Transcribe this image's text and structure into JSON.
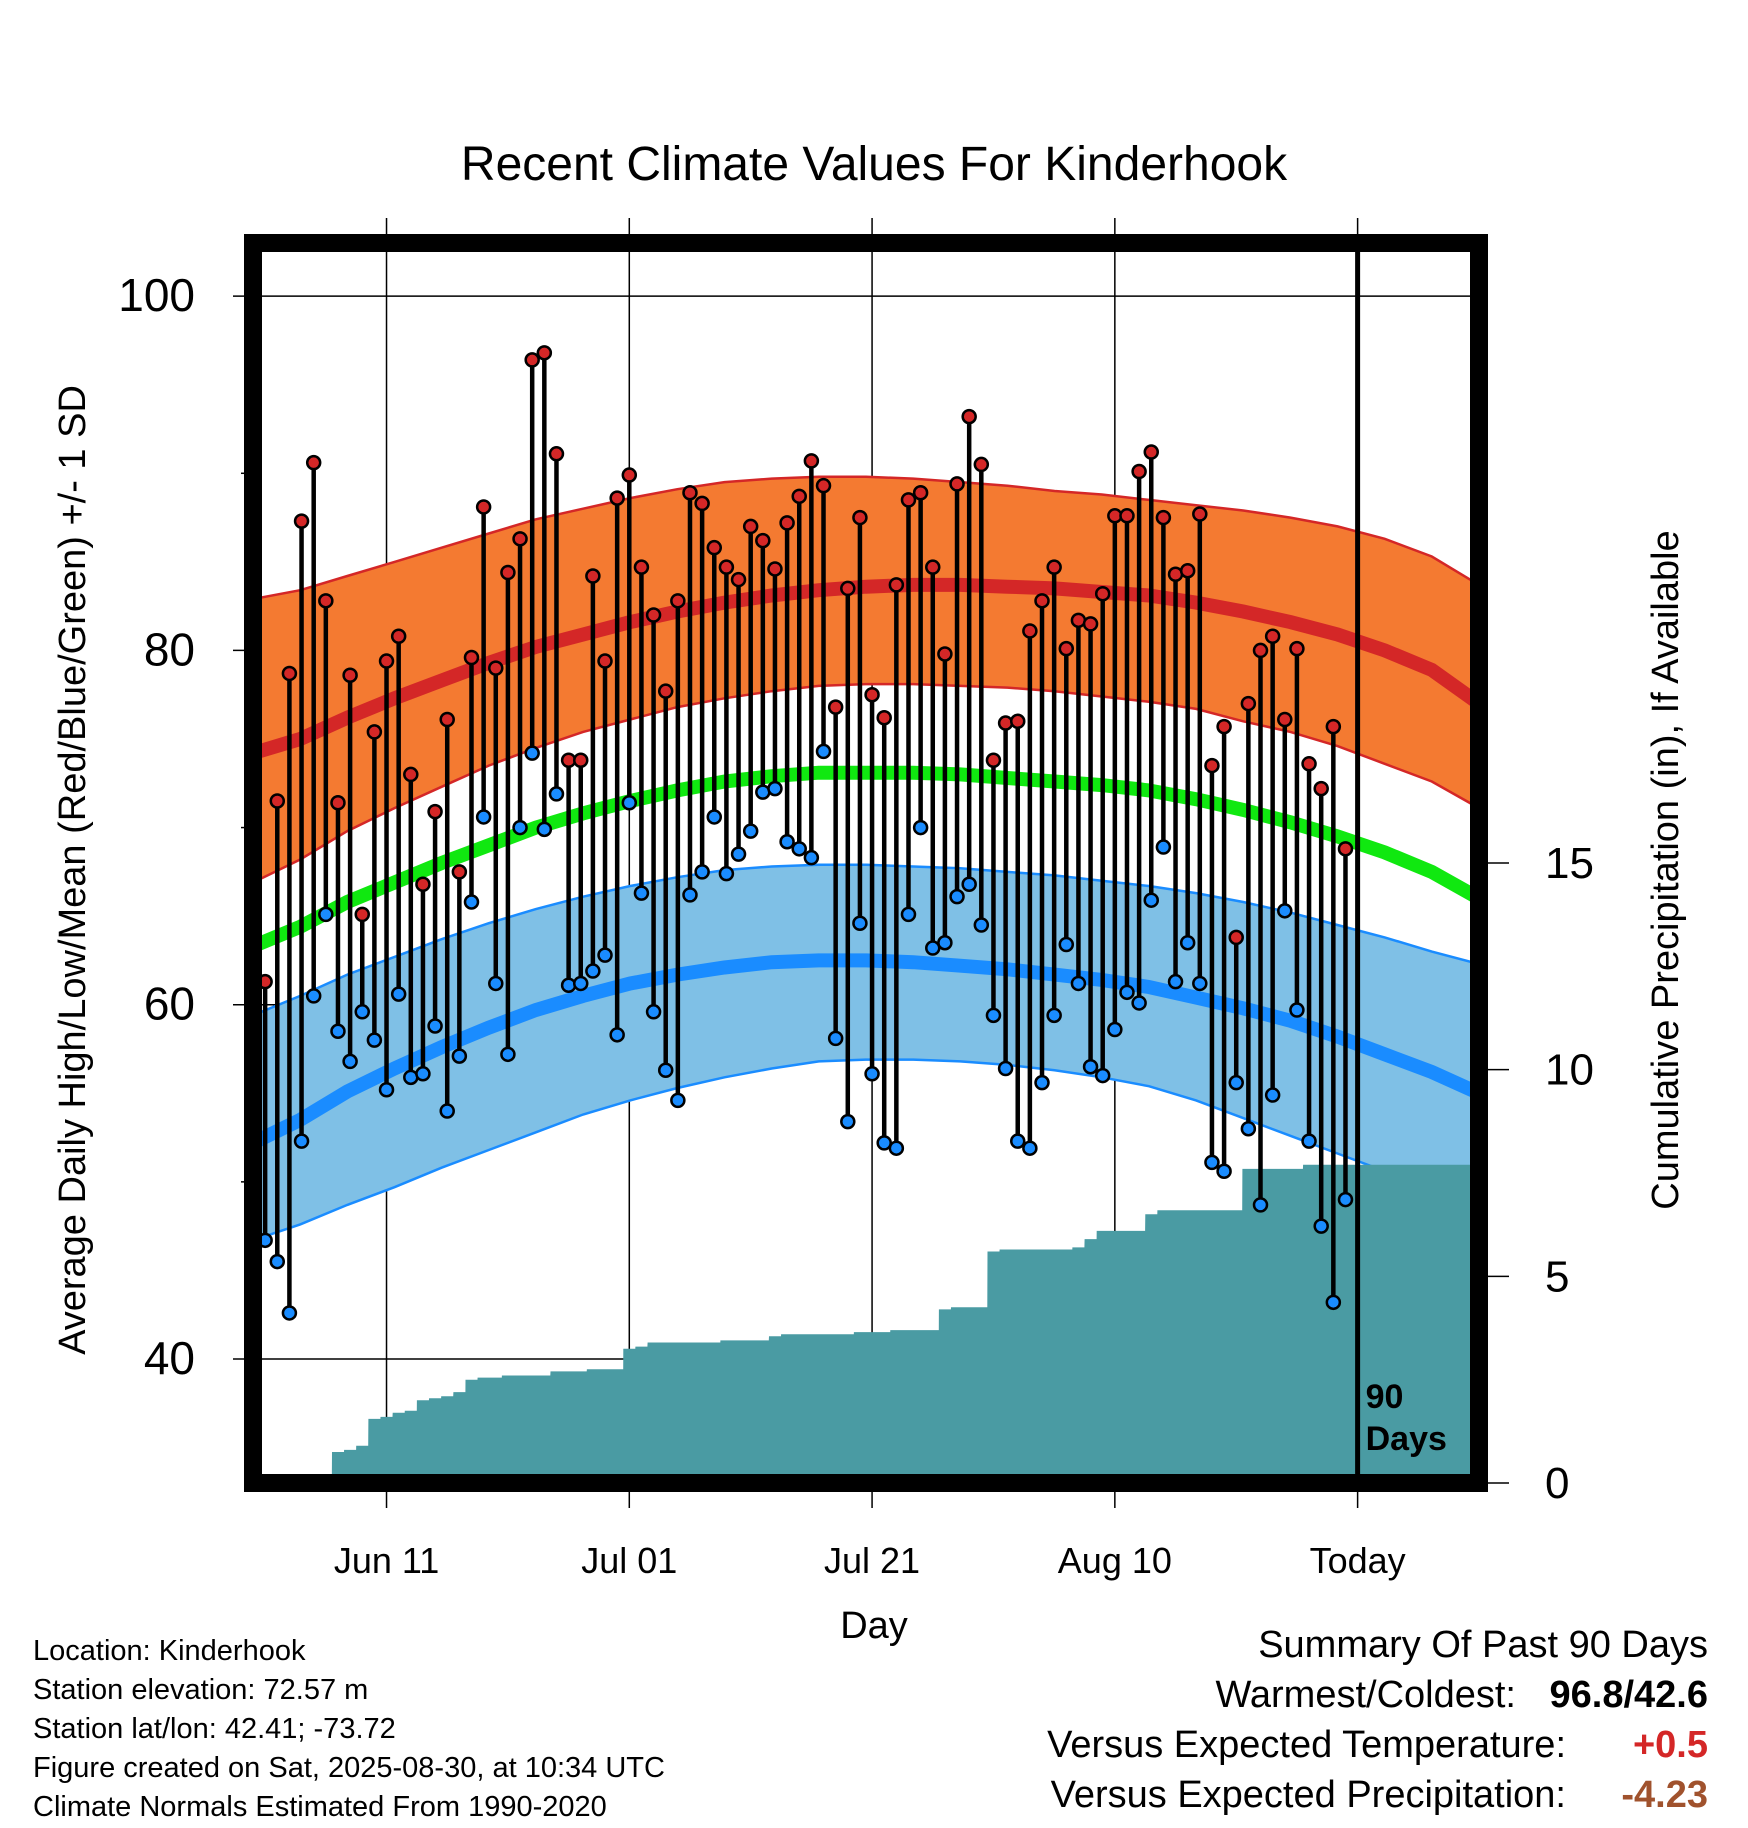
{
  "chart_data": {
    "type": "line",
    "title": "Recent Climate Values For Kinderhook",
    "xlabel": "Day",
    "ylabel": "Average Daily High/Low/Mean (Red/Blue/Green) +/- 1 SD",
    "y2label": "Cumulative Precipitation (in), If Available",
    "ylim": [
      33,
      103
    ],
    "y2lim": [
      0,
      30
    ],
    "yticks": [
      40,
      60,
      80,
      100
    ],
    "y2ticks": [
      0,
      5,
      10,
      15
    ],
    "x_range_days": [
      "2025-05-31",
      "2025-09-09"
    ],
    "x_ticks": [
      {
        "date": "2025-06-11",
        "label": "Jun 11"
      },
      {
        "date": "2025-07-01",
        "label": "Jul 01"
      },
      {
        "date": "2025-07-21",
        "label": "Jul 21"
      },
      {
        "date": "2025-08-10",
        "label": "Aug 10"
      },
      {
        "date": "2025-08-30",
        "label": "Today"
      }
    ],
    "today_marker": {
      "date": "2025-08-30",
      "label_line1": "90",
      "label_line2": "Days"
    },
    "colors": {
      "high_mean": "#d42727",
      "high_band": "#f47a31",
      "high_band_edge": "#d42727",
      "low_mean": "#1a8cff",
      "low_band": "#7fc0e6",
      "low_band_edge": "#1a8cff",
      "mean_line": "#10e810",
      "precip": "#4a9ba3",
      "high_dot": "#d42727",
      "low_dot": "#1a8cff"
    },
    "normals": {
      "start_date": "2025-05-31",
      "end_date": "2025-09-09",
      "high_mean": [
        74.2,
        75.0,
        76.2,
        77.3,
        78.3,
        79.3,
        80.2,
        80.9,
        81.6,
        82.2,
        82.7,
        83.1,
        83.4,
        83.6,
        83.7,
        83.7,
        83.6,
        83.5,
        83.3,
        83.1,
        82.7,
        82.2,
        81.6,
        80.9,
        80.0,
        78.9,
        77.0
      ],
      "high_sd_upper": [
        82.9,
        83.4,
        84.2,
        85.0,
        85.8,
        86.6,
        87.4,
        88.0,
        88.6,
        89.1,
        89.5,
        89.7,
        89.8,
        89.8,
        89.7,
        89.5,
        89.3,
        89.0,
        88.8,
        88.5,
        88.2,
        87.9,
        87.5,
        87.0,
        86.3,
        85.3,
        83.7
      ],
      "high_sd_lower": [
        66.9,
        68.2,
        69.8,
        71.1,
        72.3,
        73.5,
        74.5,
        75.4,
        76.1,
        76.8,
        77.3,
        77.7,
        78.0,
        78.1,
        78.1,
        78.0,
        77.9,
        77.7,
        77.4,
        77.1,
        76.7,
        76.0,
        75.4,
        74.6,
        73.6,
        72.6,
        71.1
      ],
      "mean_line": [
        63.3,
        64.4,
        65.8,
        66.9,
        68.0,
        69.0,
        70.0,
        70.8,
        71.5,
        72.1,
        72.6,
        72.9,
        73.1,
        73.1,
        73.1,
        73.0,
        72.8,
        72.6,
        72.4,
        72.1,
        71.6,
        71.0,
        70.3,
        69.5,
        68.6,
        67.5,
        66.0
      ],
      "low_mean": [
        52.2,
        53.5,
        55.1,
        56.4,
        57.6,
        58.7,
        59.7,
        60.5,
        61.2,
        61.7,
        62.1,
        62.4,
        62.5,
        62.5,
        62.4,
        62.2,
        62.0,
        61.7,
        61.4,
        61.0,
        60.4,
        59.8,
        59.1,
        58.2,
        57.2,
        56.2,
        55.0
      ],
      "low_sd_upper": [
        59.4,
        60.5,
        61.7,
        62.7,
        63.7,
        64.6,
        65.4,
        66.1,
        66.7,
        67.2,
        67.6,
        67.8,
        67.9,
        67.9,
        67.8,
        67.7,
        67.5,
        67.3,
        67.0,
        66.7,
        66.3,
        65.8,
        65.2,
        64.5,
        63.8,
        63.0,
        62.3
      ],
      "low_sd_lower": [
        46.7,
        47.6,
        48.7,
        49.7,
        50.8,
        51.8,
        52.8,
        53.8,
        54.6,
        55.3,
        55.9,
        56.4,
        56.8,
        56.9,
        56.9,
        56.8,
        56.6,
        56.3,
        55.9,
        55.4,
        54.6,
        53.6,
        52.6,
        51.6,
        50.6,
        49.6,
        48.8
      ]
    },
    "daily": {
      "start_date": "2025-06-01",
      "highs": [
        61.3,
        71.5,
        78.7,
        87.3,
        90.6,
        82.8,
        71.4,
        78.6,
        65.1,
        75.4,
        79.4,
        80.8,
        73.0,
        66.8,
        70.9,
        76.1,
        67.5,
        79.6,
        88.1,
        79.0,
        84.4,
        86.3,
        96.4,
        96.8,
        91.1,
        73.8,
        73.8,
        84.2,
        79.4,
        88.6,
        89.9,
        84.7,
        82.0,
        77.7,
        82.8,
        88.9,
        88.3,
        85.8,
        84.7,
        84.0,
        87.0,
        86.2,
        84.6,
        87.2,
        88.7,
        90.7,
        89.3,
        76.8,
        83.5,
        87.5,
        77.5,
        76.2,
        83.7,
        88.5,
        88.9,
        84.7,
        79.8,
        89.4,
        93.2,
        90.5,
        73.8,
        75.9,
        76.0,
        81.1,
        82.8,
        84.7,
        80.1,
        81.7,
        81.5,
        83.2,
        87.6,
        87.6,
        90.1,
        91.2,
        87.5,
        84.3,
        84.5,
        87.7,
        73.5,
        75.7,
        63.8,
        77.0,
        80.0,
        80.8,
        76.1,
        80.1,
        73.6,
        72.2,
        75.7,
        68.8
      ],
      "lows": [
        46.7,
        45.5,
        42.6,
        52.3,
        60.5,
        65.1,
        58.5,
        56.8,
        59.6,
        58.0,
        55.2,
        60.6,
        55.9,
        56.1,
        58.8,
        54.0,
        57.1,
        65.8,
        70.6,
        61.2,
        57.2,
        70.0,
        74.2,
        69.9,
        71.9,
        61.1,
        61.2,
        61.9,
        62.8,
        58.3,
        71.4,
        66.3,
        59.6,
        56.3,
        54.6,
        66.2,
        67.5,
        70.6,
        67.4,
        68.5,
        69.8,
        72.0,
        72.2,
        69.2,
        68.8,
        68.3,
        74.3,
        58.1,
        53.4,
        64.6,
        56.1,
        52.2,
        51.9,
        65.1,
        70.0,
        63.2,
        63.5,
        66.1,
        66.8,
        64.5,
        59.4,
        56.4,
        52.3,
        51.9,
        55.6,
        59.4,
        63.4,
        61.2,
        56.5,
        56.0,
        58.6,
        60.7,
        60.1,
        65.9,
        68.9,
        61.3,
        63.5,
        61.2,
        51.1,
        50.6,
        55.6,
        53.0,
        48.7,
        54.9,
        65.3,
        59.7,
        52.3,
        47.5,
        43.2,
        49.0
      ]
    },
    "precip_cumulative": {
      "start_date": "2025-06-01",
      "values": [
        0.0,
        0.0,
        0.0,
        0.0,
        0.0,
        0.0,
        0.75,
        0.8,
        0.9,
        1.55,
        1.6,
        1.7,
        1.75,
        2.0,
        2.05,
        2.1,
        2.2,
        2.5,
        2.55,
        2.55,
        2.6,
        2.6,
        2.6,
        2.6,
        2.7,
        2.7,
        2.7,
        2.75,
        2.75,
        2.75,
        3.25,
        3.3,
        3.4,
        3.4,
        3.4,
        3.4,
        3.4,
        3.4,
        3.45,
        3.45,
        3.45,
        3.45,
        3.55,
        3.6,
        3.6,
        3.6,
        3.6,
        3.6,
        3.6,
        3.65,
        3.65,
        3.65,
        3.7,
        3.7,
        3.7,
        3.7,
        4.2,
        4.25,
        4.25,
        4.25,
        5.6,
        5.65,
        5.65,
        5.65,
        5.65,
        5.65,
        5.65,
        5.7,
        5.9,
        6.1,
        6.1,
        6.1,
        6.1,
        6.5,
        6.6,
        6.6,
        6.6,
        6.6,
        6.6,
        6.6,
        6.6,
        7.6,
        7.6,
        7.6,
        7.6,
        7.6,
        7.7,
        7.7,
        7.7,
        7.7,
        7.7,
        7.7,
        7.7,
        7.7,
        7.7,
        7.7,
        7.7,
        7.7,
        7.7,
        7.7
      ]
    }
  },
  "info": {
    "location": "Location: Kinderhook",
    "elevation": "Station elevation: 72.57 m",
    "latlon": "Station lat/lon: 42.41; -73.72",
    "created": "Figure created on Sat, 2025-08-30, at 10:34 UTC",
    "normals_period": "Climate Normals Estimated From 1990-2020"
  },
  "summary": {
    "title": "Summary Of Past 90 Days",
    "warm_cold_label": "Warmest/Coldest:",
    "warm_cold_value": "96.8/42.6",
    "temp_label": "Versus Expected Temperature:",
    "temp_value": "+0.5",
    "temp_color": "#d42727",
    "precip_label": "Versus Expected Precipitation:",
    "precip_value": "-4.23",
    "precip_color": "#a0522d"
  }
}
